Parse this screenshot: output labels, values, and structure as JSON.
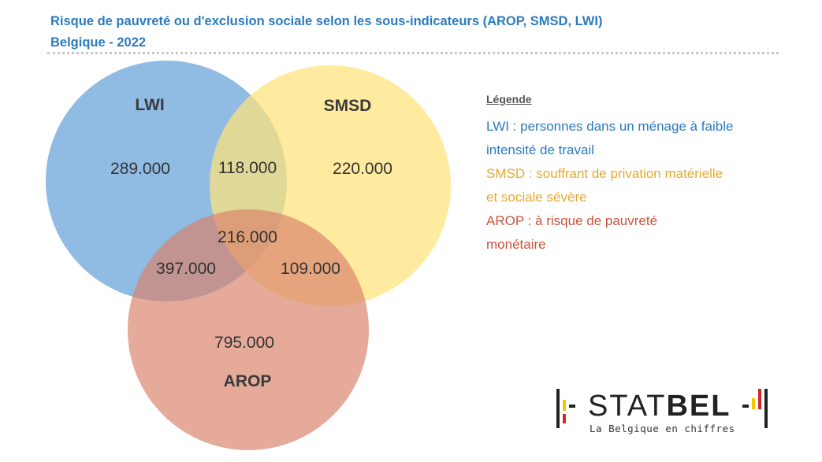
{
  "title": {
    "line1": "Risque de pauvreté ou d'exclusion sociale selon les sous-indicateurs (AROP, SMSD, LWI)",
    "line2": "Belgique - 2022"
  },
  "colors": {
    "title": "#2b7bbd",
    "lwi": "#5b9bd5",
    "smsd": "#ffe37a",
    "arop": "#d9826a",
    "legend_lwi": "#2b7bbd",
    "legend_smsd": "#e8a92c",
    "legend_arop": "#c8553d",
    "logo_black": "#222222",
    "logo_yellow": "#f4c400",
    "logo_red": "#d7262b"
  },
  "chart_data": {
    "type": "venn",
    "sets": [
      {
        "name": "LWI",
        "label": "LWI"
      },
      {
        "name": "SMSD",
        "label": "SMSD"
      },
      {
        "name": "AROP",
        "label": "AROP"
      }
    ],
    "regions": [
      {
        "sets": [
          "LWI"
        ],
        "value": 289000,
        "label": "289.000"
      },
      {
        "sets": [
          "SMSD"
        ],
        "value": 220000,
        "label": "220.000"
      },
      {
        "sets": [
          "AROP"
        ],
        "value": 795000,
        "label": "795.000"
      },
      {
        "sets": [
          "LWI",
          "SMSD"
        ],
        "value": 118000,
        "label": "118.000"
      },
      {
        "sets": [
          "LWI",
          "AROP"
        ],
        "value": 397000,
        "label": "397.000"
      },
      {
        "sets": [
          "SMSD",
          "AROP"
        ],
        "value": 109000,
        "label": "109.000"
      },
      {
        "sets": [
          "LWI",
          "SMSD",
          "AROP"
        ],
        "value": 216000,
        "label": "216.000"
      }
    ]
  },
  "legend": {
    "title": "Légende",
    "entries": [
      {
        "key": "lwi",
        "lines": [
          "LWI : personnes dans un ménage à faible",
          "intensité de travail"
        ]
      },
      {
        "key": "smsd",
        "lines": [
          "SMSD : souffrant de privation matérielle",
          "et sociale sévère"
        ]
      },
      {
        "key": "arop",
        "lines": [
          "AROP : à risque de pauvreté",
          "monétaire"
        ]
      }
    ]
  },
  "logo": {
    "word_thin": "STAT",
    "word_bold": "BEL",
    "tagline": "La Belgique en chiffres"
  }
}
